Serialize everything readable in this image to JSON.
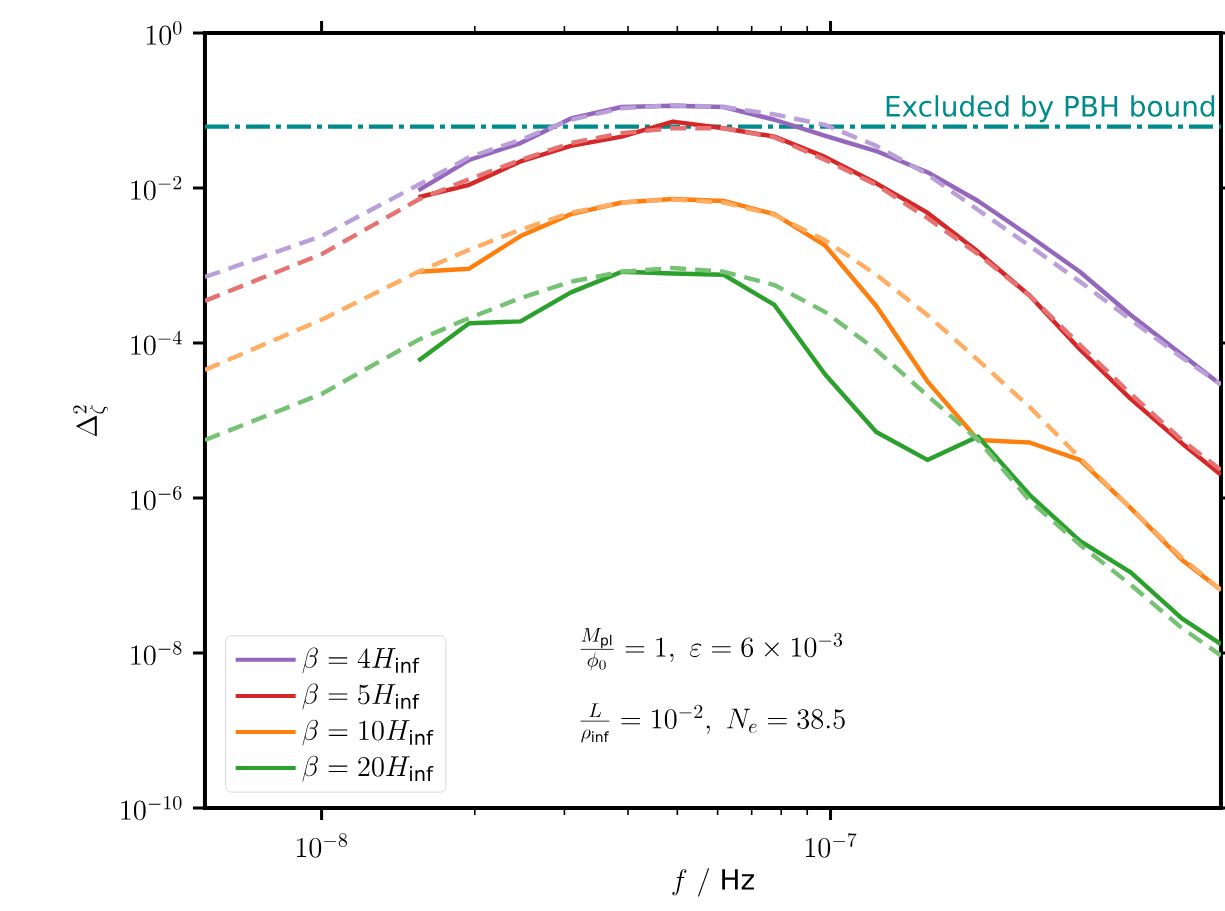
{
  "chart_data": {
    "type": "line",
    "xlabel": "f\\ /\\ \\mathrm{Hz}",
    "ylabel": "\\Delta^2_\\zeta",
    "log": "xy",
    "legend": "bottom left",
    "xlim": [
      5.9e-09,
      5.85e-07
    ],
    "ylim": [
      1e-10,
      1
    ],
    "xticks": [
      {
        "value": 1e-08,
        "label": "10^{-8}"
      },
      {
        "value": 1e-07,
        "label": "10^{-7}"
      }
    ],
    "yticks": [
      {
        "value": 1e-10,
        "label": "10^{-10}"
      },
      {
        "value": 1e-08,
        "label": "10^{-8}"
      },
      {
        "value": 1e-06,
        "label": "10^{-6}"
      },
      {
        "value": 0.0001,
        "label": "10^{-4}"
      },
      {
        "value": 0.01,
        "label": "10^{-2}"
      },
      {
        "value": 1,
        "label": "10^{0}"
      }
    ],
    "series": [
      {
        "name": "\\beta = 4H_\\mathrm{inf}",
        "color": "#9467bd",
        "line_style": "solid",
        "x": [
          1.55e-08,
          1.95e-08,
          2.46e-08,
          3.09e-08,
          3.89e-08,
          4.9e-08,
          6.17e-08,
          7.76e-08,
          9.77e-08,
          1.23e-07,
          1.55e-07,
          1.95e-07,
          2.46e-07,
          3.09e-07,
          3.89e-07,
          4.9e-07,
          5.85e-07
        ],
        "values": [
          0.0093,
          0.023,
          0.038,
          0.079,
          0.111,
          0.115,
          0.111,
          0.076,
          0.047,
          0.03,
          0.016,
          0.0068,
          0.0024,
          0.00083,
          0.00023,
          7.1e-05,
          2.9e-05
        ]
      },
      {
        "name": "\\beta = 5H_\\mathrm{inf}",
        "color": "#d62728",
        "line_style": "solid",
        "x": [
          1.55e-08,
          1.95e-08,
          2.46e-08,
          3.09e-08,
          3.89e-08,
          4.9e-08,
          6.17e-08,
          7.76e-08,
          9.77e-08,
          1.23e-07,
          1.55e-07,
          1.95e-07,
          2.46e-07,
          3.09e-07,
          3.89e-07,
          4.9e-07,
          5.85e-07
        ],
        "values": [
          0.0076,
          0.011,
          0.022,
          0.035,
          0.046,
          0.072,
          0.059,
          0.046,
          0.025,
          0.0115,
          0.0048,
          0.0015,
          0.00041,
          8.3e-05,
          1.9e-05,
          5.1e-06,
          2e-06
        ]
      },
      {
        "name": "\\beta = 10H_\\mathrm{inf}",
        "color": "#ff7f0e",
        "line_style": "solid",
        "x": [
          1.55e-08,
          1.95e-08,
          2.46e-08,
          3.09e-08,
          3.89e-08,
          4.9e-08,
          6.17e-08,
          7.76e-08,
          9.77e-08,
          1.23e-07,
          1.55e-07,
          1.95e-07,
          2.46e-07,
          3.09e-07,
          3.89e-07,
          4.9e-07,
          5.85e-07
        ],
        "values": [
          0.00083,
          0.00091,
          0.0024,
          0.0046,
          0.0065,
          0.0072,
          0.0068,
          0.0046,
          0.0018,
          0.0003,
          3.2e-05,
          5.6e-06,
          5.2e-06,
          3.1e-06,
          7.4e-07,
          1.6e-07,
          6.5e-08
        ]
      },
      {
        "name": "\\beta = 20H_\\mathrm{inf}",
        "color": "#2ca02c",
        "line_style": "solid",
        "x": [
          1.55e-08,
          1.95e-08,
          2.46e-08,
          3.09e-08,
          3.89e-08,
          4.9e-08,
          6.17e-08,
          7.76e-08,
          9.77e-08,
          1.23e-07,
          1.55e-07,
          1.95e-07,
          2.46e-07,
          3.09e-07,
          3.89e-07,
          4.9e-07,
          5.85e-07
        ],
        "values": [
          5.9e-05,
          0.00018,
          0.00019,
          0.00045,
          0.00083,
          0.00079,
          0.00076,
          0.00031,
          3.9e-05,
          7.1e-06,
          3.1e-06,
          6.2e-06,
          1.1e-06,
          2.8e-07,
          1.1e-07,
          2.8e-08,
          1.3e-08
        ]
      },
      {
        "color": "#bb9fd9",
        "line_style": "dashed",
        "x": [
          5.9e-09,
          1e-08,
          1.55e-08,
          1.95e-08,
          2.46e-08,
          3.09e-08,
          3.89e-08,
          4.9e-08,
          6.17e-08,
          7.76e-08,
          9.77e-08,
          1.23e-07,
          1.55e-07,
          1.95e-07,
          2.46e-07,
          3.09e-07,
          3.89e-07,
          4.9e-07,
          5.85e-07
        ],
        "values": [
          0.00071,
          0.0024,
          0.011,
          0.025,
          0.042,
          0.076,
          0.107,
          0.117,
          0.111,
          0.089,
          0.065,
          0.035,
          0.015,
          0.0052,
          0.0018,
          0.00062,
          0.0002,
          6.5e-05,
          2.9e-05
        ]
      },
      {
        "color": "#e67272",
        "line_style": "dashed",
        "x": [
          5.9e-09,
          1e-08,
          1.55e-08,
          1.95e-08,
          2.46e-08,
          3.09e-08,
          3.89e-08,
          4.9e-08,
          6.17e-08,
          7.76e-08,
          9.77e-08,
          1.23e-07,
          1.55e-07,
          1.95e-07,
          2.46e-07,
          3.09e-07,
          3.89e-07,
          4.9e-07,
          5.85e-07
        ],
        "values": [
          0.00035,
          0.0014,
          0.0071,
          0.013,
          0.023,
          0.038,
          0.051,
          0.059,
          0.059,
          0.045,
          0.023,
          0.011,
          0.0041,
          0.0014,
          0.00041,
          9.5e-05,
          2.2e-05,
          5.6e-06,
          2.3e-06
        ]
      },
      {
        "color": "#ffad62",
        "line_style": "dashed",
        "x": [
          5.9e-09,
          1e-08,
          1.55e-08,
          1.95e-08,
          2.46e-08,
          3.09e-08,
          3.89e-08,
          4.9e-08,
          6.17e-08,
          7.76e-08,
          9.77e-08,
          1.23e-07,
          1.55e-07,
          1.95e-07,
          2.46e-07,
          3.09e-07,
          3.89e-07,
          4.9e-07,
          5.85e-07
        ],
        "values": [
          4.5e-05,
          0.0002,
          0.00083,
          0.0016,
          0.0029,
          0.0048,
          0.0065,
          0.0071,
          0.0065,
          0.0045,
          0.0021,
          0.00076,
          0.00023,
          6e-05,
          1.5e-05,
          3.3e-06,
          7.4e-07,
          1.7e-07,
          6.5e-08
        ]
      },
      {
        "color": "#76c274",
        "line_style": "dashed",
        "x": [
          5.9e-09,
          1e-08,
          1.55e-08,
          1.95e-08,
          2.46e-08,
          3.09e-08,
          3.89e-08,
          4.9e-08,
          6.17e-08,
          7.76e-08,
          9.77e-08,
          1.23e-07,
          1.55e-07,
          1.95e-07,
          2.46e-07,
          3.09e-07,
          3.89e-07,
          4.9e-07,
          5.85e-07
        ],
        "values": [
          5.6e-06,
          2.2e-05,
          0.00011,
          0.00021,
          0.00038,
          0.00062,
          0.00083,
          0.00093,
          0.00083,
          0.00056,
          0.00025,
          8.1e-05,
          2.1e-05,
          5.6e-06,
          9.3e-07,
          2.5e-07,
          7.6e-08,
          2.1e-08,
          9.3e-09
        ]
      }
    ],
    "ref_lines": [
      {
        "axis": "y",
        "value": 0.062,
        "label": "Excluded by PBH bound",
        "color": "#008b8b",
        "line_style": "dashdot"
      }
    ],
    "annotations": [
      "\\frac{M_\\mathrm{pl}}{\\phi_0} = 1,\\ \\varepsilon = 6\\times 10^{-3}",
      "\\frac{L}{\\rho_\\mathrm{inf}} = 10^{-2},\\ N_e = 38.5"
    ]
  }
}
